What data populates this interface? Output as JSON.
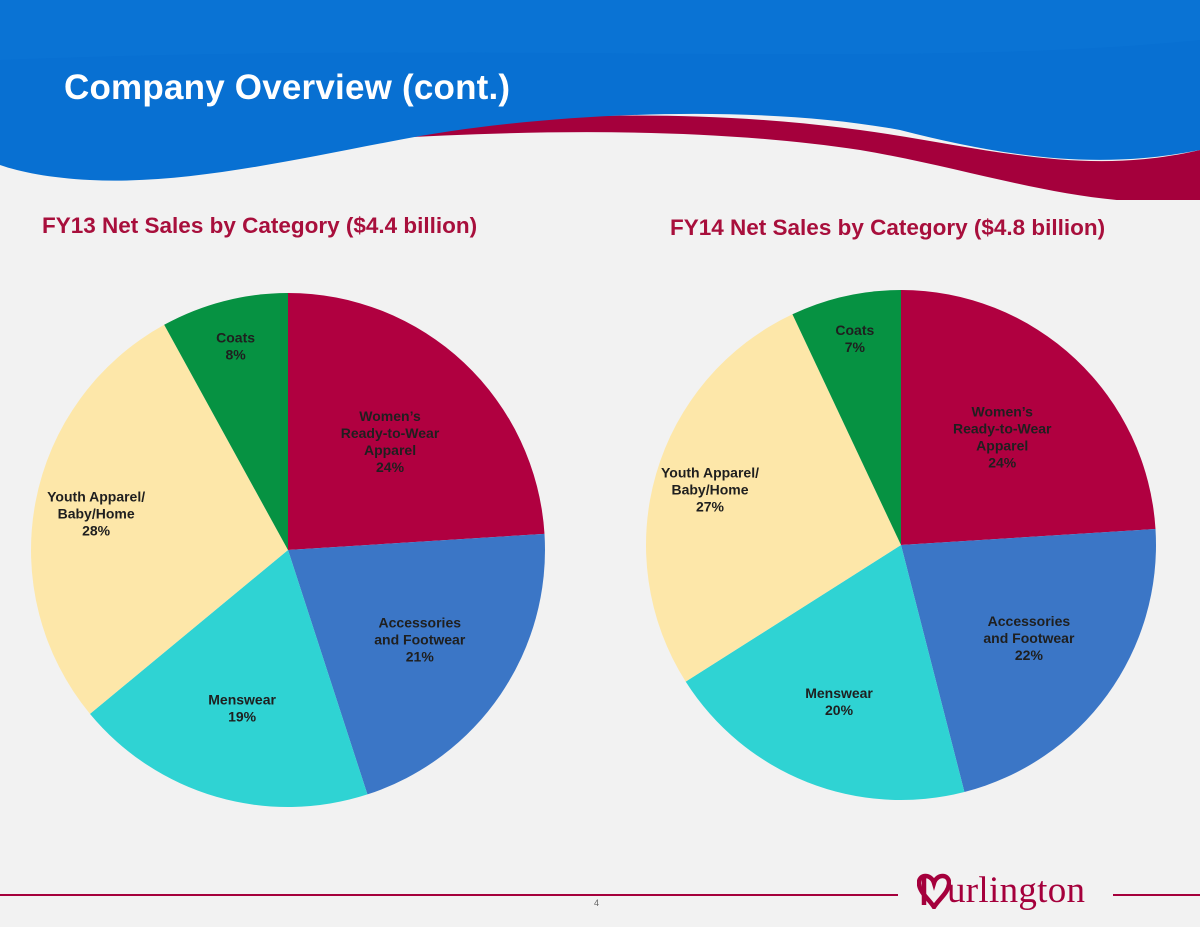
{
  "slide": {
    "title": "Company Overview (cont.)",
    "page_number": "4",
    "logo_text": "urlington"
  },
  "colors": {
    "header_blue": "#0870d2",
    "header_blue_light": "#1c86e6",
    "accent_crimson": "#a5003c",
    "title_red": "#a80f3c",
    "background": "#f2f2f2"
  },
  "icons": {
    "logo_mark": "heart-b-icon"
  },
  "chart_data": [
    {
      "type": "pie",
      "title": "FY13 Net Sales by Category ($4.4 billion)",
      "slices": [
        {
          "label_lines": [
            "Women’s",
            "Ready-to-Wear",
            "Apparel"
          ],
          "pct_label": "24%",
          "value": 24,
          "color": "#b00040"
        },
        {
          "label_lines": [
            "Accessories",
            "and Footwear"
          ],
          "pct_label": "21%",
          "value": 21,
          "color": "#3b76c6"
        },
        {
          "label_lines": [
            "Menswear"
          ],
          "pct_label": "19%",
          "value": 19,
          "color": "#2fd3d3"
        },
        {
          "label_lines": [
            "Youth Apparel/",
            "Baby/Home"
          ],
          "pct_label": "28%",
          "value": 28,
          "color": "#fde7a9"
        },
        {
          "label_lines": [
            "Coats"
          ],
          "pct_label": "8%",
          "value": 8,
          "color": "#069242"
        }
      ],
      "start": "12 o'clock",
      "direction": "clockwise",
      "legend": "none"
    },
    {
      "type": "pie",
      "title": "FY14 Net Sales by Category ($4.8 billion)",
      "slices": [
        {
          "label_lines": [
            "Women’s",
            "Ready-to-Wear",
            "Apparel"
          ],
          "pct_label": "24%",
          "value": 24,
          "color": "#b00040"
        },
        {
          "label_lines": [
            "Accessories",
            "and Footwear"
          ],
          "pct_label": "22%",
          "value": 22,
          "color": "#3b76c6"
        },
        {
          "label_lines": [
            "Menswear"
          ],
          "pct_label": "20%",
          "value": 20,
          "color": "#2fd3d3"
        },
        {
          "label_lines": [
            "Youth Apparel/",
            "Baby/Home"
          ],
          "pct_label": "27%",
          "value": 27,
          "color": "#fde7a9"
        },
        {
          "label_lines": [
            "Coats"
          ],
          "pct_label": "7%",
          "value": 7,
          "color": "#069242"
        }
      ],
      "start": "12 o'clock",
      "direction": "clockwise",
      "legend": "none"
    }
  ]
}
